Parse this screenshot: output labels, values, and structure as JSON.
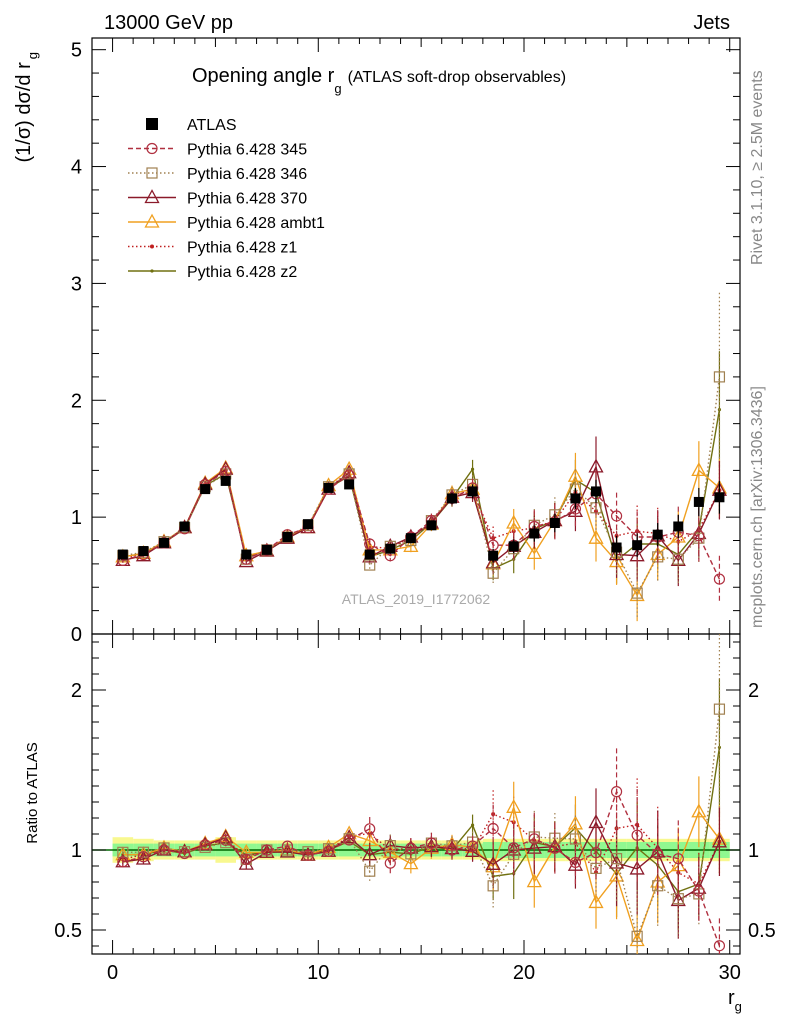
{
  "header": {
    "left": "13000 GeV pp",
    "right": "Jets",
    "title_main": "Opening angle r",
    "title_sub": "g",
    "title_paren": "(ATLAS soft-drop observables)",
    "watermark": "ATLAS_2019_I1772062",
    "side_rivet": "Rivet 3.1.10, ≥ 2.5M events",
    "side_mcplots": "mcplots.cern.ch [arXiv:1306.3436]"
  },
  "chart_data": [
    {
      "type": "line",
      "panel": "main",
      "ylabel": "(1/σ) dσ/d r",
      "ylabel_sub": "g",
      "xlim": [
        -1,
        30.5
      ],
      "ylim": [
        0,
        5.1
      ],
      "yticks": [
        0,
        1,
        2,
        3,
        4,
        5
      ],
      "yticklabels": [
        "0",
        "1",
        "2",
        "3",
        "4",
        "5"
      ],
      "x": [
        0.5,
        1.5,
        2.5,
        3.5,
        4.5,
        5.5,
        6.5,
        7.5,
        8.5,
        9.5,
        10.5,
        11.5,
        12.5,
        13.5,
        14.5,
        15.5,
        16.5,
        17.5,
        18.5,
        19.5,
        20.5,
        21.5,
        22.5,
        23.5,
        24.5,
        25.5,
        26.5,
        27.5,
        28.5,
        29.5
      ],
      "series": [
        {
          "name": "ATLAS",
          "color": "#000000",
          "style": "data",
          "values": [
            0.68,
            0.71,
            0.78,
            0.92,
            1.24,
            1.31,
            0.68,
            0.72,
            0.83,
            0.94,
            1.25,
            1.28,
            0.68,
            0.73,
            0.82,
            0.93,
            1.16,
            1.22,
            0.67,
            0.75,
            0.86,
            0.95,
            1.16,
            1.22,
            0.74,
            0.76,
            0.85,
            0.92,
            1.13,
            1.17
          ],
          "err": [
            0.03,
            0.03,
            0.03,
            0.03,
            0.04,
            0.04,
            0.03,
            0.03,
            0.03,
            0.03,
            0.04,
            0.04,
            0.04,
            0.04,
            0.04,
            0.04,
            0.05,
            0.06,
            0.06,
            0.06,
            0.07,
            0.08,
            0.09,
            0.1,
            0.1,
            0.1,
            0.1,
            0.1,
            0.12,
            0.14
          ]
        },
        {
          "name": "Pythia 6.428 345",
          "color": "#b03040",
          "style": "dashed",
          "marker": "circle",
          "values": [
            0.63,
            0.68,
            0.78,
            0.9,
            1.28,
            1.39,
            0.64,
            0.72,
            0.85,
            0.91,
            1.24,
            1.36,
            0.77,
            0.67,
            0.83,
            0.97,
            1.16,
            1.25,
            0.76,
            0.76,
            0.92,
            0.96,
            1.07,
            1.2,
            1.01,
            0.83,
            0.83,
            0.87,
            0.84,
            0.47
          ],
          "err": [
            0.02,
            0.02,
            0.02,
            0.02,
            0.03,
            0.03,
            0.02,
            0.02,
            0.02,
            0.03,
            0.03,
            0.03,
            0.05,
            0.05,
            0.05,
            0.06,
            0.07,
            0.08,
            0.1,
            0.12,
            0.14,
            0.15,
            0.17,
            0.2,
            0.2,
            0.22,
            0.22,
            0.22,
            0.22,
            0.2
          ]
        },
        {
          "name": "Pythia 6.428 346",
          "color": "#a08050",
          "style": "dotted",
          "marker": "square",
          "values": [
            0.67,
            0.7,
            0.79,
            0.91,
            1.26,
            1.37,
            0.64,
            0.72,
            0.83,
            0.93,
            1.26,
            1.37,
            0.59,
            0.75,
            0.8,
            0.97,
            1.19,
            1.28,
            0.52,
            0.73,
            0.93,
            1.02,
            1.24,
            1.08,
            0.7,
            0.35,
            0.66,
            0.64,
            0.82,
            2.2
          ],
          "err": [
            0.02,
            0.02,
            0.02,
            0.02,
            0.03,
            0.03,
            0.02,
            0.02,
            0.02,
            0.03,
            0.03,
            0.03,
            0.05,
            0.05,
            0.05,
            0.06,
            0.07,
            0.08,
            0.1,
            0.12,
            0.14,
            0.15,
            0.17,
            0.2,
            0.2,
            0.22,
            0.22,
            0.22,
            0.22,
            0.72
          ]
        },
        {
          "name": "Pythia 6.428 370",
          "color": "#8b1a2a",
          "style": "solid",
          "marker": "triangle",
          "values": [
            0.63,
            0.67,
            0.78,
            0.91,
            1.28,
            1.41,
            0.62,
            0.71,
            0.82,
            0.91,
            1.24,
            1.38,
            0.66,
            0.75,
            0.83,
            0.95,
            1.17,
            1.21,
            0.61,
            0.75,
            0.87,
            0.97,
            1.05,
            1.43,
            0.68,
            0.67,
            0.84,
            0.63,
            0.86,
            1.23
          ],
          "err": [
            0.02,
            0.02,
            0.02,
            0.02,
            0.03,
            0.03,
            0.02,
            0.02,
            0.02,
            0.03,
            0.03,
            0.03,
            0.05,
            0.05,
            0.05,
            0.06,
            0.07,
            0.08,
            0.1,
            0.12,
            0.14,
            0.15,
            0.17,
            0.26,
            0.2,
            0.22,
            0.22,
            0.22,
            0.22,
            0.25
          ]
        },
        {
          "name": "Pythia 6.428 ambt1",
          "color": "#f0a020",
          "style": "solid",
          "marker": "triangle",
          "values": [
            0.66,
            0.69,
            0.79,
            0.91,
            1.29,
            1.42,
            0.67,
            0.71,
            0.83,
            0.91,
            1.27,
            1.41,
            0.72,
            0.72,
            0.75,
            0.94,
            1.2,
            1.24,
            0.6,
            0.95,
            0.69,
            0.97,
            1.35,
            0.82,
            0.62,
            0.33,
            0.68,
            0.83,
            1.4,
            1.25
          ],
          "err": [
            0.02,
            0.02,
            0.02,
            0.02,
            0.03,
            0.03,
            0.02,
            0.02,
            0.02,
            0.03,
            0.03,
            0.03,
            0.05,
            0.05,
            0.05,
            0.06,
            0.07,
            0.08,
            0.1,
            0.12,
            0.14,
            0.15,
            0.2,
            0.2,
            0.2,
            0.22,
            0.22,
            0.22,
            0.25,
            0.25
          ]
        },
        {
          "name": "Pythia 6.428 z1",
          "color": "#c02020",
          "style": "dotted",
          "marker": "dot",
          "values": [
            0.64,
            0.69,
            0.78,
            0.91,
            1.28,
            1.4,
            0.65,
            0.72,
            0.83,
            0.92,
            1.25,
            1.39,
            0.75,
            0.73,
            0.83,
            0.94,
            1.19,
            1.22,
            0.82,
            0.88,
            0.91,
            0.97,
            1.21,
            1.05,
            0.84,
            0.88,
            0.86,
            0.79,
            0.89,
            1.23
          ],
          "err": [
            0.02,
            0.02,
            0.02,
            0.02,
            0.03,
            0.03,
            0.02,
            0.02,
            0.02,
            0.03,
            0.03,
            0.03,
            0.05,
            0.05,
            0.05,
            0.06,
            0.07,
            0.08,
            0.1,
            0.12,
            0.14,
            0.15,
            0.17,
            0.2,
            0.2,
            0.22,
            0.22,
            0.22,
            0.22,
            0.25
          ]
        },
        {
          "name": "Pythia 6.428 z2",
          "color": "#707010",
          "style": "solid",
          "marker": "smalldot",
          "values": [
            0.66,
            0.69,
            0.78,
            0.9,
            1.27,
            1.37,
            0.66,
            0.71,
            0.82,
            0.92,
            1.25,
            1.35,
            0.66,
            0.72,
            0.8,
            0.95,
            1.16,
            1.41,
            0.56,
            0.64,
            0.9,
            0.97,
            1.32,
            1.21,
            0.63,
            0.77,
            0.77,
            0.68,
            0.89,
            1.92
          ],
          "err": [
            0.02,
            0.02,
            0.02,
            0.02,
            0.03,
            0.03,
            0.02,
            0.02,
            0.02,
            0.03,
            0.03,
            0.03,
            0.05,
            0.05,
            0.05,
            0.06,
            0.07,
            0.08,
            0.1,
            0.12,
            0.14,
            0.15,
            0.17,
            0.2,
            0.2,
            0.22,
            0.22,
            0.22,
            0.22,
            0.5
          ]
        }
      ]
    },
    {
      "type": "line",
      "panel": "ratio",
      "ylabel": "Ratio to ATLAS",
      "xlabel": "r",
      "xlabel_sub": "g",
      "xlim": [
        -1,
        30.5
      ],
      "ylim": [
        0.35,
        2.35
      ],
      "yticks": [
        0.5,
        1,
        2
      ],
      "yticklabels": [
        "0.5",
        "1",
        "2"
      ],
      "xticks": [
        0,
        10,
        20,
        30
      ],
      "xticklabels": [
        "0",
        "10",
        "20",
        "30"
      ],
      "note": "ratio series = main-panel series divided by ATLAS values",
      "band_inner": [
        0.04,
        0.04,
        0.04,
        0.04,
        0.04,
        0.04,
        0.04,
        0.04,
        0.04,
        0.04,
        0.04,
        0.04,
        0.04,
        0.04,
        0.04,
        0.04,
        0.04,
        0.04,
        0.05,
        0.05,
        0.05,
        0.05,
        0.05,
        0.05,
        0.05,
        0.05,
        0.05,
        0.05,
        0.05,
        0.05
      ],
      "band_outer": [
        0.08,
        0.07,
        0.06,
        0.06,
        0.06,
        0.08,
        0.06,
        0.06,
        0.06,
        0.06,
        0.06,
        0.06,
        0.06,
        0.06,
        0.06,
        0.06,
        0.06,
        0.06,
        0.07,
        0.07,
        0.07,
        0.07,
        0.07,
        0.07,
        0.07,
        0.07,
        0.07,
        0.07,
        0.07,
        0.07
      ]
    }
  ],
  "colors": {
    "band_inner": "#90f890",
    "band_outer": "#f8f890",
    "reference_line": "#006600"
  }
}
